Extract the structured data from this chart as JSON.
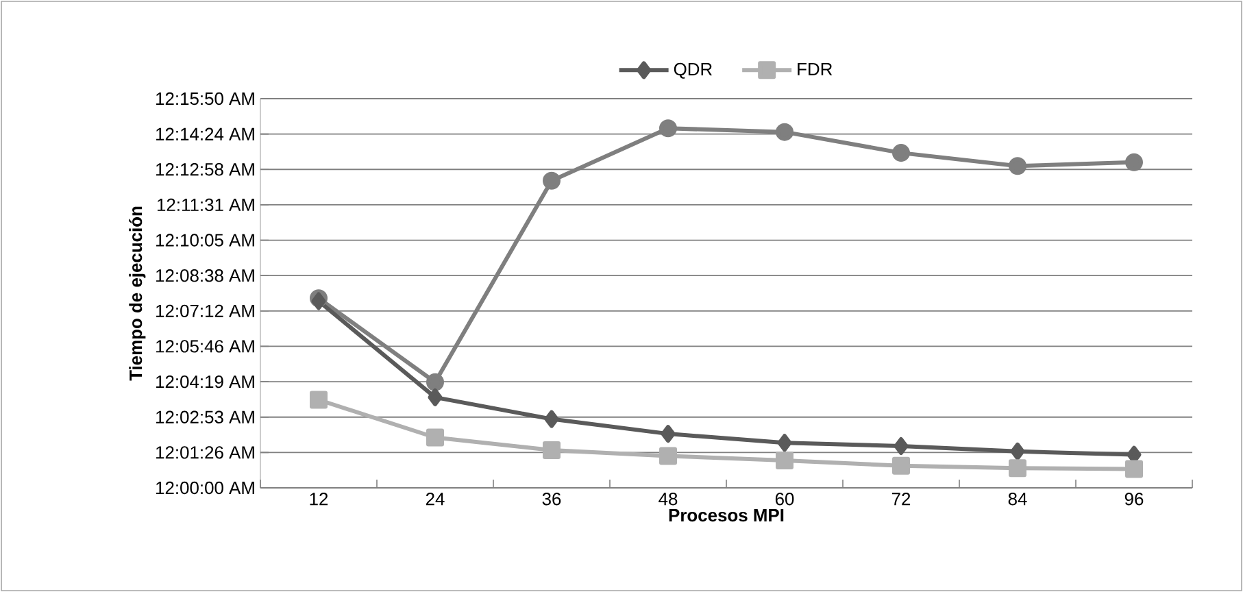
{
  "chart_data": {
    "type": "line",
    "xlabel": "Procesos MPI",
    "ylabel": "Tiempo de ejecución",
    "categories": [
      "12",
      "24",
      "36",
      "48",
      "60",
      "72",
      "84",
      "96"
    ],
    "series": [
      {
        "name": "QDR",
        "color": "#5a5a5a",
        "marker": "diamond",
        "values": [
          456,
          221,
          168,
          132,
          110,
          102,
          89,
          81
        ]
      },
      {
        "name": "FDR",
        "color": "#b0b0b0",
        "marker": "square",
        "values": [
          215,
          123,
          92,
          78,
          67,
          54,
          48,
          46
        ]
      },
      {
        "color": "#7f7f7f",
        "marker": "circle",
        "values": [
          463,
          258,
          750,
          878,
          869,
          818,
          786,
          795
        ]
      }
    ],
    "ylim": [
      0,
      950.4
    ],
    "yticks": [
      {
        "value": 0,
        "label": "12:00:00 AM"
      },
      {
        "value": 86.4,
        "label": "12:01:26 AM"
      },
      {
        "value": 172.8,
        "label": "12:02:53 AM"
      },
      {
        "value": 259.2,
        "label": "12:04:19 AM"
      },
      {
        "value": 345.6,
        "label": "12:05:46 AM"
      },
      {
        "value": 432,
        "label": "12:07:12 AM"
      },
      {
        "value": 518.4,
        "label": "12:08:38 AM"
      },
      {
        "value": 604.8,
        "label": "12:10:05 AM"
      },
      {
        "value": 691.2,
        "label": "12:11:31 AM"
      },
      {
        "value": 777.6,
        "label": "12:12:58 AM"
      },
      {
        "value": 864,
        "label": "12:14:24 AM"
      },
      {
        "value": 950.4,
        "label": "12:15:50 AM"
      }
    ],
    "grid": "y",
    "legend": "top"
  }
}
